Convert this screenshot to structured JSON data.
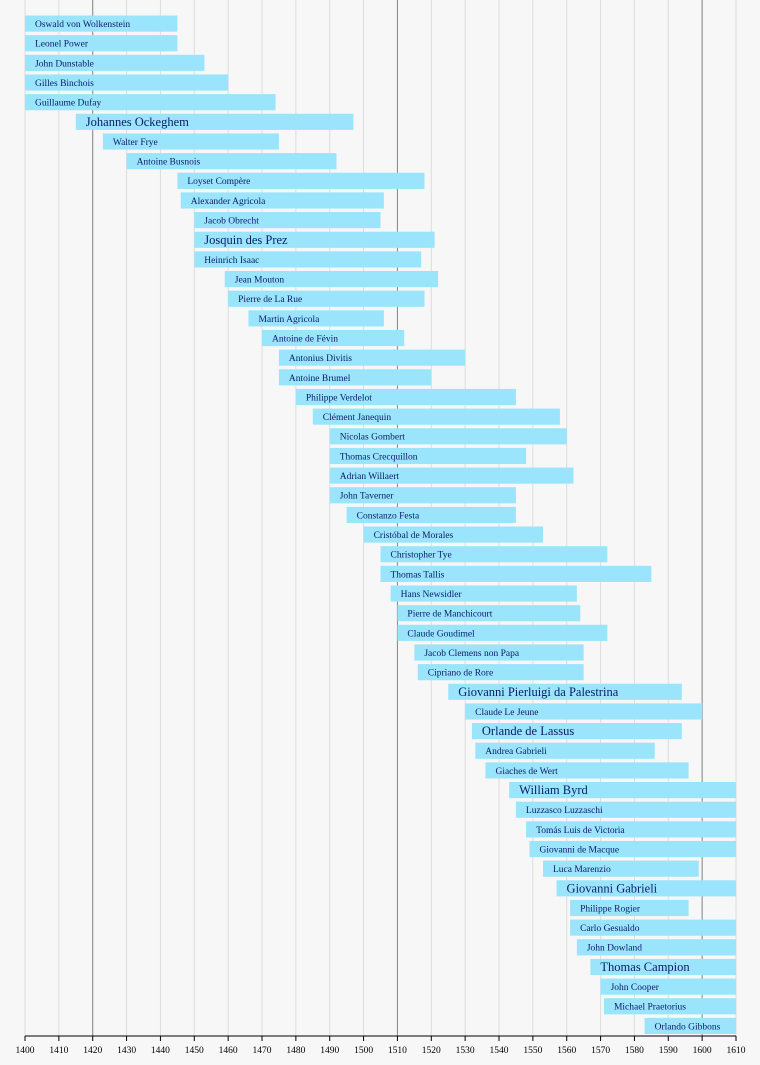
{
  "chart_data": {
    "type": "timeline",
    "categories": [
      "Oswald von Wolkenstein",
      "Leonel Power",
      "John Dunstable",
      "Gilles Binchois",
      "Guillaume Dufay",
      "Johannes Ockeghem",
      "Walter Frye",
      "Antoine Busnois",
      "Loyset Compère",
      "Alexander Agricola",
      "Jacob Obrecht",
      "Josquin des Prez",
      "Heinrich Isaac",
      "Jean Mouton",
      "Pierre de La Rue",
      "Martin Agricola",
      "Antoine de Févin",
      "Antonius Divitis",
      "Antoine Brumel",
      "Philippe Verdelot",
      "Clément Janequin",
      "Nicolas Gombert",
      "Thomas Crecquillon",
      "Adrian Willaert",
      "John Taverner",
      "Constanzo Festa",
      "Cristóbal de Morales",
      "Christopher Tye",
      "Thomas Tallis",
      "Hans Newsidler",
      "Pierre de Manchicourt",
      "Claude Goudimel",
      "Jacob Clemens non Papa",
      "Cipriano de Rore",
      "Giovanni Pierluigi da Palestrina",
      "Claude Le Jeune",
      "Orlande de Lassus",
      "Andrea Gabrieli",
      "Giaches de Wert",
      "William Byrd",
      "Luzzasco Luzzaschi",
      "Tomás Luis de Victoria",
      "Giovanni de Macque",
      "Luca Marenzio",
      "Giovanni Gabrieli",
      "Philippe Rogier",
      "Carlo Gesualdo",
      "John Dowland",
      "Thomas Campion",
      "John Cooper",
      "Michael Praetorius",
      "Orlando Gibbons"
    ],
    "start": [
      1400,
      1400,
      1400,
      1400,
      1400,
      1415,
      1423,
      1430,
      1445,
      1446,
      1450,
      1450,
      1450,
      1459,
      1460,
      1466,
      1470,
      1475,
      1475,
      1480,
      1485,
      1490,
      1490,
      1490,
      1490,
      1495,
      1500,
      1505,
      1505,
      1508,
      1510,
      1510,
      1515,
      1516,
      1525,
      1530,
      1532,
      1533,
      1536,
      1543,
      1545,
      1548,
      1549,
      1553,
      1557,
      1561,
      1561,
      1563,
      1567,
      1570,
      1571,
      1583
    ],
    "end": [
      1445,
      1445,
      1453,
      1460,
      1474,
      1497,
      1475,
      1492,
      1518,
      1506,
      1505,
      1521,
      1517,
      1522,
      1518,
      1506,
      1512,
      1530,
      1520,
      1545,
      1558,
      1560,
      1548,
      1562,
      1545,
      1545,
      1553,
      1572,
      1585,
      1563,
      1564,
      1572,
      1565,
      1565,
      1594,
      1600,
      1594,
      1586,
      1596,
      1610,
      1610,
      1610,
      1610,
      1599,
      1610,
      1596,
      1610,
      1610,
      1610,
      1610,
      1610,
      1610
    ],
    "highlight": [
      5,
      11,
      34,
      36,
      39,
      44,
      48
    ],
    "color": "#9be5fc",
    "xlim": [
      1400,
      1610
    ],
    "xticks": [
      1400,
      1410,
      1420,
      1430,
      1440,
      1450,
      1460,
      1470,
      1480,
      1490,
      1500,
      1510,
      1520,
      1530,
      1540,
      1550,
      1560,
      1570,
      1580,
      1590,
      1600,
      1610
    ],
    "major_grid": [
      1420,
      1510,
      1600
    ],
    "grid": true
  }
}
